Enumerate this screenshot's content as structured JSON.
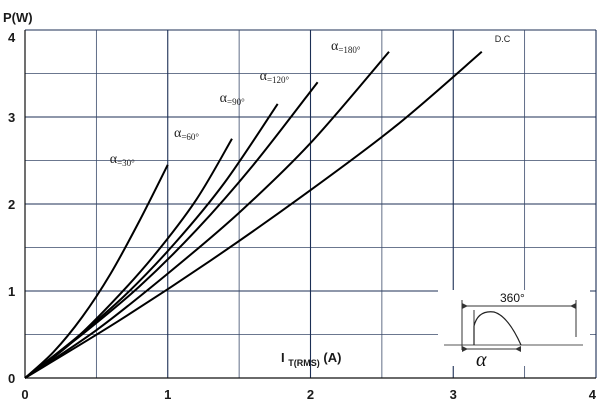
{
  "chart_data": {
    "type": "line",
    "xlabel_main": "I",
    "xlabel_sub": "T(RMS)",
    "xlabel_unit": "(A)",
    "ylabel": "P(W)",
    "xlim": [
      0,
      4
    ],
    "ylim": [
      0,
      4
    ],
    "x_major_ticks": [
      "0",
      "1",
      "2",
      "3",
      "4"
    ],
    "y_major_ticks": [
      "0",
      "1",
      "2",
      "3",
      "4"
    ],
    "grid": true,
    "series": [
      {
        "name": "α=30°",
        "label_main": "α",
        "label_sub": "=30°",
        "x": [
          0,
          0.2,
          0.4,
          0.6,
          0.8,
          1.0
        ],
        "y": [
          0,
          0.3,
          0.7,
          1.2,
          1.8,
          2.45
        ]
      },
      {
        "name": "α=60°",
        "label_main": "α",
        "label_sub": "=60°",
        "x": [
          0,
          0.3,
          0.6,
          0.9,
          1.2,
          1.45
        ],
        "y": [
          0,
          0.37,
          0.85,
          1.4,
          2.05,
          2.75
        ]
      },
      {
        "name": "α=90°",
        "label_main": "α",
        "label_sub": "=90°",
        "x": [
          0,
          0.35,
          0.7,
          1.05,
          1.4,
          1.77
        ],
        "y": [
          0,
          0.45,
          0.95,
          1.55,
          2.25,
          3.15
        ]
      },
      {
        "name": "α=120°",
        "label_main": "α",
        "label_sub": "=120°",
        "x": [
          0,
          0.4,
          0.8,
          1.2,
          1.6,
          2.05
        ],
        "y": [
          0,
          0.5,
          1.05,
          1.7,
          2.45,
          3.4
        ]
      },
      {
        "name": "α=180°",
        "label_main": "α",
        "label_sub": "=180°",
        "x": [
          0,
          0.5,
          1.0,
          1.5,
          2.0,
          2.55
        ],
        "y": [
          0,
          0.55,
          1.2,
          1.9,
          2.7,
          3.75
        ]
      },
      {
        "name": "D.C",
        "label_main": "D.C",
        "label_sub": "",
        "x": [
          0,
          0.65,
          1.3,
          1.95,
          2.6,
          3.2
        ],
        "y": [
          0,
          0.65,
          1.35,
          2.1,
          2.9,
          3.75
        ]
      }
    ],
    "inset": {
      "period_label": "360°",
      "angle_label": "α"
    }
  }
}
